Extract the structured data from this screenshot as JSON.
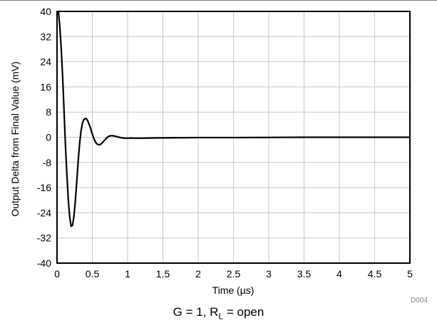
{
  "chart_data": {
    "type": "line",
    "xlabel": "Time (µs)",
    "ylabel": "Output Delta from Final Value (mV)",
    "xlim": [
      0,
      5
    ],
    "ylim": [
      -40,
      40
    ],
    "xticks": [
      0,
      0.5,
      1,
      1.5,
      2,
      2.5,
      3,
      3.5,
      4,
      4.5,
      5
    ],
    "xtick_labels": [
      "0",
      "0.5",
      "1",
      "1.5",
      "2",
      "2.5",
      "3",
      "3.5",
      "4",
      "4.5",
      "5"
    ],
    "yticks": [
      40,
      32,
      24,
      16,
      8,
      0,
      -8,
      -16,
      -24,
      -32,
      -40
    ],
    "ytick_labels": [
      "40",
      "32",
      "24",
      "16",
      "8",
      "0",
      "-8",
      "-16",
      "-24",
      "-32",
      "-40"
    ],
    "grid": true,
    "series": [
      {
        "color": "#000000",
        "x": [
          0.02,
          0.04,
          0.06,
          0.08,
          0.1,
          0.12,
          0.14,
          0.16,
          0.18,
          0.2,
          0.22,
          0.24,
          0.26,
          0.28,
          0.3,
          0.32,
          0.34,
          0.36,
          0.38,
          0.4,
          0.42,
          0.44,
          0.46,
          0.48,
          0.5,
          0.52,
          0.54,
          0.56,
          0.58,
          0.6,
          0.62,
          0.64,
          0.66,
          0.68,
          0.7,
          0.72,
          0.74,
          0.76,
          0.78,
          0.8,
          0.82,
          0.84,
          0.86,
          0.88,
          0.9,
          0.92,
          0.94,
          0.96,
          0.98,
          1.0,
          1.02,
          1.04,
          1.06,
          1.08,
          1.1,
          1.15,
          1.2,
          1.3,
          1.4,
          1.5,
          1.7,
          2.0,
          2.5,
          3.0,
          3.5,
          4.0,
          4.5,
          5.0
        ],
        "y": [
          40,
          35,
          28,
          19,
          8,
          -3,
          -12,
          -20,
          -25.5,
          -28.3,
          -28,
          -25,
          -20,
          -14,
          -7.5,
          -2,
          2,
          4.5,
          5.6,
          6,
          5.8,
          5,
          3.8,
          2.5,
          1,
          -0.3,
          -1.3,
          -2,
          -2.3,
          -2.4,
          -2.2,
          -1.8,
          -1.3,
          -0.8,
          -0.3,
          0.1,
          0.35,
          0.5,
          0.5,
          0.45,
          0.35,
          0.25,
          0.1,
          0,
          -0.1,
          -0.2,
          -0.25,
          -0.3,
          -0.3,
          -0.3,
          -0.3,
          -0.25,
          -0.25,
          -0.3,
          -0.3,
          -0.3,
          -0.3,
          -0.25,
          -0.2,
          -0.2,
          -0.15,
          -0.1,
          -0.1,
          -0.05,
          0,
          0,
          0,
          0
        ]
      }
    ]
  },
  "figure_id": "D004",
  "caption": {
    "prefix": "G = 1, R",
    "subscript": "L",
    "suffix": " = open"
  }
}
